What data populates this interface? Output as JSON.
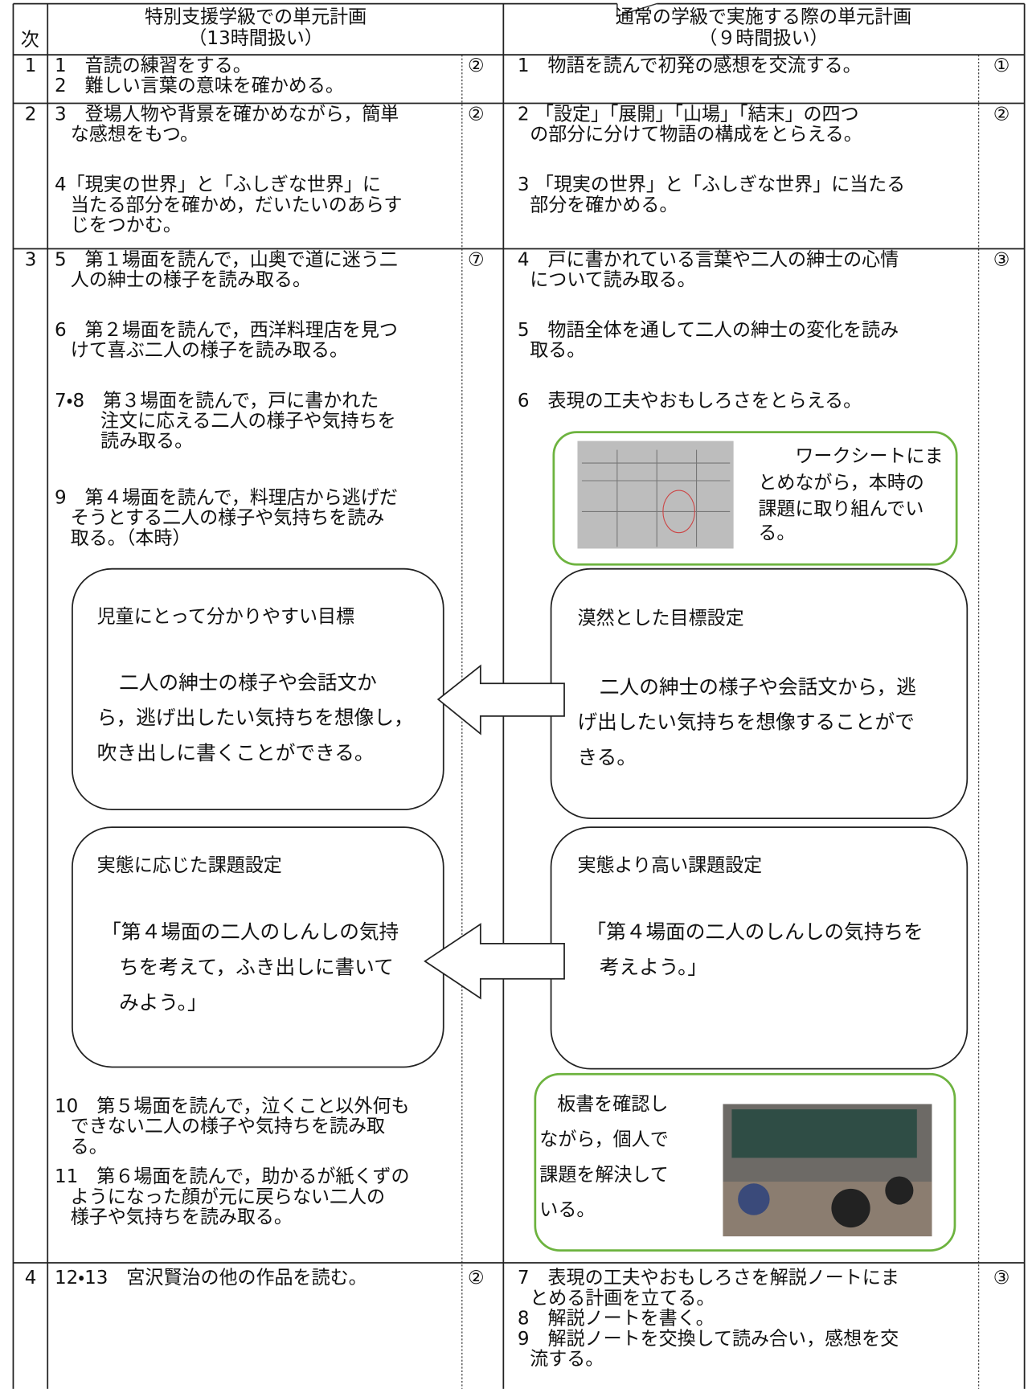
{
  "header": {
    "stage_label": "次",
    "left_title": [
      "特別支援学級での単元計画",
      "（13時間扱い）"
    ],
    "right_title": [
      "通常の学級で実施する際の単元計画",
      "（９時間扱い）"
    ]
  },
  "rows": [
    {
      "stage": "1",
      "left": [
        [
          "1　音読の練習をする。"
        ],
        [
          "2　難しい言葉の意味を確かめる。"
        ]
      ],
      "left_hours": "②",
      "right": [
        [
          "1　物語を読んで初発の感想を交流する。"
        ]
      ],
      "right_hours": "①"
    },
    {
      "stage": "2",
      "left": [
        [
          "3　登場人物や背景を確かめながら，簡単",
          "な感想をもつ。"
        ],
        [
          "4「現実の世界」と「ふしぎな世界」に",
          "当たる部分を確かめ，だいたいのあらす",
          "じをつかむ。"
        ]
      ],
      "left_hours": "②",
      "right": [
        [
          "2 「設定」「展開」「山場」「結末」の四つ",
          "の部分に分けて物語の構成をとらえる。"
        ],
        [
          "3 「現実の世界」と「ふしぎな世界」に当たる",
          "部分を確かめる。"
        ]
      ],
      "right_hours": "②"
    },
    {
      "stage": "3",
      "left": [
        [
          "5　第１場面を読んで，山奥で道に迷う二",
          "人の紳士の様子を読み取る。"
        ],
        [
          "6　第２場面を読んで，西洋料理店を見つ",
          "けて喜ぶ二人の様子を読み取る。"
        ],
        [
          "7・8　第３場面を読んで，戸に書かれた",
          "注文に応える二人の様子や気持ちを",
          "読み取る。"
        ],
        [
          "9　第４場面を読んで，料理店から逃げだ",
          "そうとする二人の様子や気持ちを読み",
          "取る。（本時）"
        ],
        [
          "10　第５場面を読んで，泣くこと以外何も",
          "できない二人の様子や気持ちを読み取",
          "る。"
        ],
        [
          "11　第６場面を読んで，助かるが紙くずの",
          "ようになった顔が元に戻らない二人の",
          "様子や気持ちを読み取る。"
        ]
      ],
      "left_hours": "⑦",
      "right": [
        [
          "4　戸に書かれている言葉や二人の紳士の心情",
          "について読み取る。"
        ],
        [
          "5　物語全体を通して二人の紳士の変化を読み",
          "取る。"
        ],
        [
          "6　表現の工夫やおもしろさをとらえる。"
        ]
      ],
      "right_hours": "③"
    },
    {
      "stage": "4",
      "left": [
        [
          "12・13　宮沢賢治の他の作品を読む。"
        ]
      ],
      "left_hours": "②",
      "right": [
        [
          "7　表現の工夫やおもしろさを解説ノートにま",
          "とめる計画を立てる。"
        ],
        [
          "8　解説ノートを書く。"
        ],
        [
          "9　解説ノートを交換して読み合い，感想を交",
          "流する。"
        ]
      ],
      "right_hours": "③"
    }
  ],
  "photo_captions": {
    "worksheet": [
      "ワークシートにま",
      "とめながら，本時の",
      "課題に取り組んでい",
      "る。"
    ],
    "board": [
      "板書を確認し",
      "ながら，個人で",
      "課題を解決して",
      "いる。"
    ]
  },
  "callouts": [
    {
      "heading": "児童にとって分かりやすい目標",
      "body": [
        "二人の紳士の様子や会話文か",
        "ら，逃げ出したい気持ちを想像し，",
        "吹き出しに書くことができる。"
      ]
    },
    {
      "heading": "漠然とした目標設定",
      "body": [
        "二人の紳士の様子や会話文から，逃",
        "げ出したい気持ちを想像することがで",
        "きる。"
      ]
    },
    {
      "heading": "実態に応じた課題設定",
      "body": [
        "「第４場面の二人のしんしの気持",
        "ちを考えて，ふき出しに書いて",
        "みよう。」"
      ]
    },
    {
      "heading": "実態より高い課題設定",
      "body": [
        "「第４場面の二人のしんしの気持ちを",
        "考えよう。」"
      ]
    }
  ]
}
